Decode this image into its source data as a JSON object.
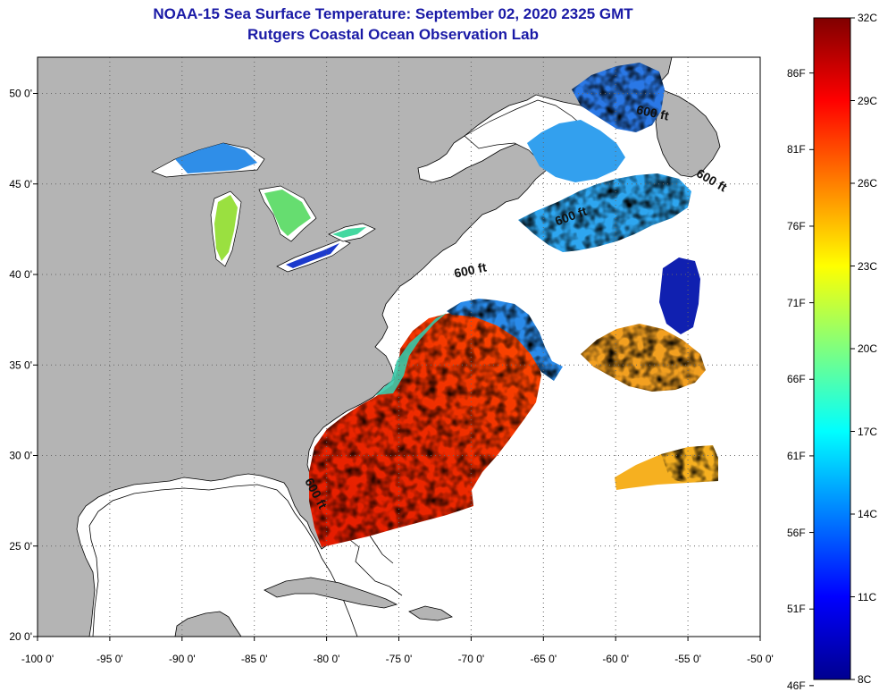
{
  "title": {
    "line1": "NOAA-15 Sea Surface Temperature:  September 02, 2020 2325 GMT",
    "line2": "Rutgers Coastal Ocean Observation Lab"
  },
  "map": {
    "lon_range": [
      -100,
      -50
    ],
    "lat_range": [
      20,
      52
    ],
    "lat_ticks": [
      {
        "value": 50,
        "label": "50 0'"
      },
      {
        "value": 45,
        "label": "45 0'"
      },
      {
        "value": 40,
        "label": "40 0'"
      },
      {
        "value": 35,
        "label": "35 0'"
      },
      {
        "value": 30,
        "label": "30 0'"
      },
      {
        "value": 25,
        "label": "25 0'"
      },
      {
        "value": 20,
        "label": "20 0'"
      }
    ],
    "lon_ticks": [
      {
        "value": -100,
        "label": "-100 0'"
      },
      {
        "value": -95,
        "label": "-95 0'"
      },
      {
        "value": -90,
        "label": "-90 0'"
      },
      {
        "value": -85,
        "label": "-85 0'"
      },
      {
        "value": -80,
        "label": "-80 0'"
      },
      {
        "value": -75,
        "label": "-75 0'"
      },
      {
        "value": -70,
        "label": "-70 0'"
      },
      {
        "value": -65,
        "label": "-65 0'"
      },
      {
        "value": -60,
        "label": "-60 0'"
      },
      {
        "value": -55,
        "label": "-55 0'"
      },
      {
        "value": -50,
        "label": "-50 0'"
      }
    ],
    "contour_labels": [
      {
        "text": "600 ft",
        "lon": -81.0,
        "lat": 27.8,
        "rotate": 62
      },
      {
        "text": "600 ft",
        "lon": -70.0,
        "lat": 40.0,
        "rotate": -12
      },
      {
        "text": "600 ft",
        "lon": -63.0,
        "lat": 43.0,
        "rotate": -20
      },
      {
        "text": "600 ft",
        "lon": -57.5,
        "lat": 48.7,
        "rotate": 12
      },
      {
        "text": "600 ft",
        "lon": -53.5,
        "lat": 45.0,
        "rotate": 30
      }
    ],
    "colors": {
      "land": "#b4b4b4",
      "no_data": "#ffffff",
      "coastline": "#000000",
      "grid": "#666666"
    }
  },
  "colorbar": {
    "min_c": 8,
    "max_c": 32,
    "celsius_labels": [
      "32C",
      "29C",
      "26C",
      "23C",
      "20C",
      "17C",
      "14C",
      "11C",
      "8C"
    ],
    "fahrenheit_labels": [
      "86F",
      "81F",
      "76F",
      "71F",
      "66F",
      "61F",
      "56F",
      "51F",
      "46F"
    ],
    "fahrenheit_values": [
      86,
      81,
      76,
      71,
      66,
      61,
      56,
      51,
      46
    ]
  }
}
